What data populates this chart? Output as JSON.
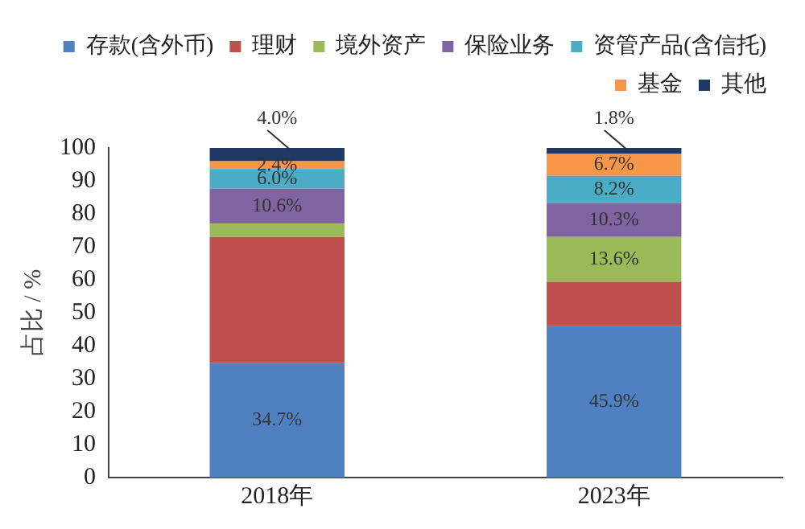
{
  "chart_data": {
    "type": "bar",
    "stacked": true,
    "ylabel": "占比 / %",
    "categories": [
      "2018年",
      "2023年"
    ],
    "ylim": [
      0,
      100
    ],
    "yticks": [
      0,
      10,
      20,
      30,
      40,
      50,
      60,
      70,
      80,
      90,
      100
    ],
    "grid": false,
    "legend": "top",
    "series": [
      {
        "name": "存款(含外币)",
        "color": "#4f81c2",
        "values": [
          34.7,
          45.9
        ],
        "value_labels": [
          "34.7%",
          "45.9%"
        ]
      },
      {
        "name": "理财",
        "color": "#c0504d",
        "values": [
          38.3,
          13.5
        ],
        "value_labels": [
          null,
          null
        ]
      },
      {
        "name": "境外资产",
        "color": "#9bbb59",
        "values": [
          4.0,
          13.6
        ],
        "value_labels": [
          null,
          "13.6%"
        ]
      },
      {
        "name": "保险业务",
        "color": "#8064a2",
        "values": [
          10.6,
          10.3
        ],
        "value_labels": [
          "10.6%",
          "10.3%"
        ]
      },
      {
        "name": "资管产品(含信托)",
        "color": "#4bacc6",
        "values": [
          6.0,
          8.2
        ],
        "value_labels": [
          "6.0%",
          "8.2%"
        ]
      },
      {
        "name": "基金",
        "color": "#f79646",
        "values": [
          2.4,
          6.7
        ],
        "value_labels": [
          "2.4%",
          "6.7%"
        ]
      },
      {
        "name": "其他",
        "color": "#1f3864",
        "values": [
          4.0,
          1.8
        ],
        "value_labels": [
          "4.0%",
          "1.8%"
        ]
      }
    ]
  }
}
